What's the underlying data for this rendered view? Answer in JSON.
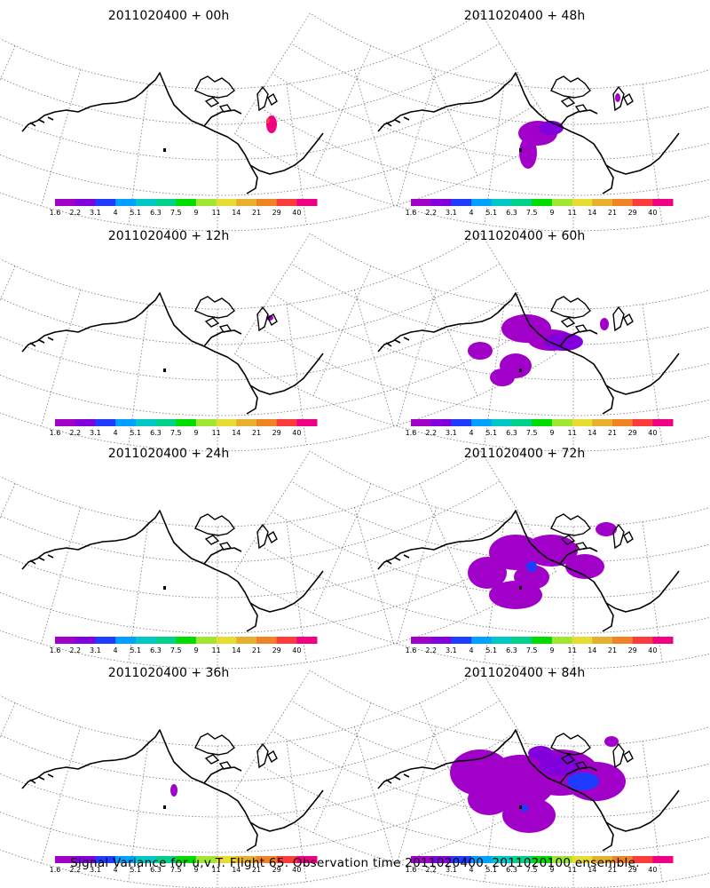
{
  "panels": [
    {
      "title": "2011020400 + 00h",
      "lead_hours": 0
    },
    {
      "title": "2011020400 + 48h",
      "lead_hours": 48
    },
    {
      "title": "2011020400 + 12h",
      "lead_hours": 12
    },
    {
      "title": "2011020400 + 60h",
      "lead_hours": 60
    },
    {
      "title": "2011020400 + 24h",
      "lead_hours": 24
    },
    {
      "title": "2011020400 + 72h",
      "lead_hours": 72
    },
    {
      "title": "2011020400 + 36h",
      "lead_hours": 36
    },
    {
      "title": "2011020400 + 84h",
      "lead_hours": 84
    }
  ],
  "colorbar": {
    "labels": [
      "1.6",
      "2.2",
      "3.1",
      "4",
      "5.1",
      "6.3",
      "7.5",
      "9",
      "11",
      "14",
      "21",
      "29",
      "40"
    ],
    "colors": [
      "#a000c8",
      "#8200dc",
      "#1e3cff",
      "#00a0ff",
      "#00c8c8",
      "#00d28c",
      "#00dc00",
      "#a0e632",
      "#e6dc32",
      "#e6af2d",
      "#f08228",
      "#fa3c3c",
      "#f00082"
    ]
  },
  "caption": "Signal Variance for u,v,T. Flight 65. Observation time 2011020400. 2011020100 ensemble."
}
